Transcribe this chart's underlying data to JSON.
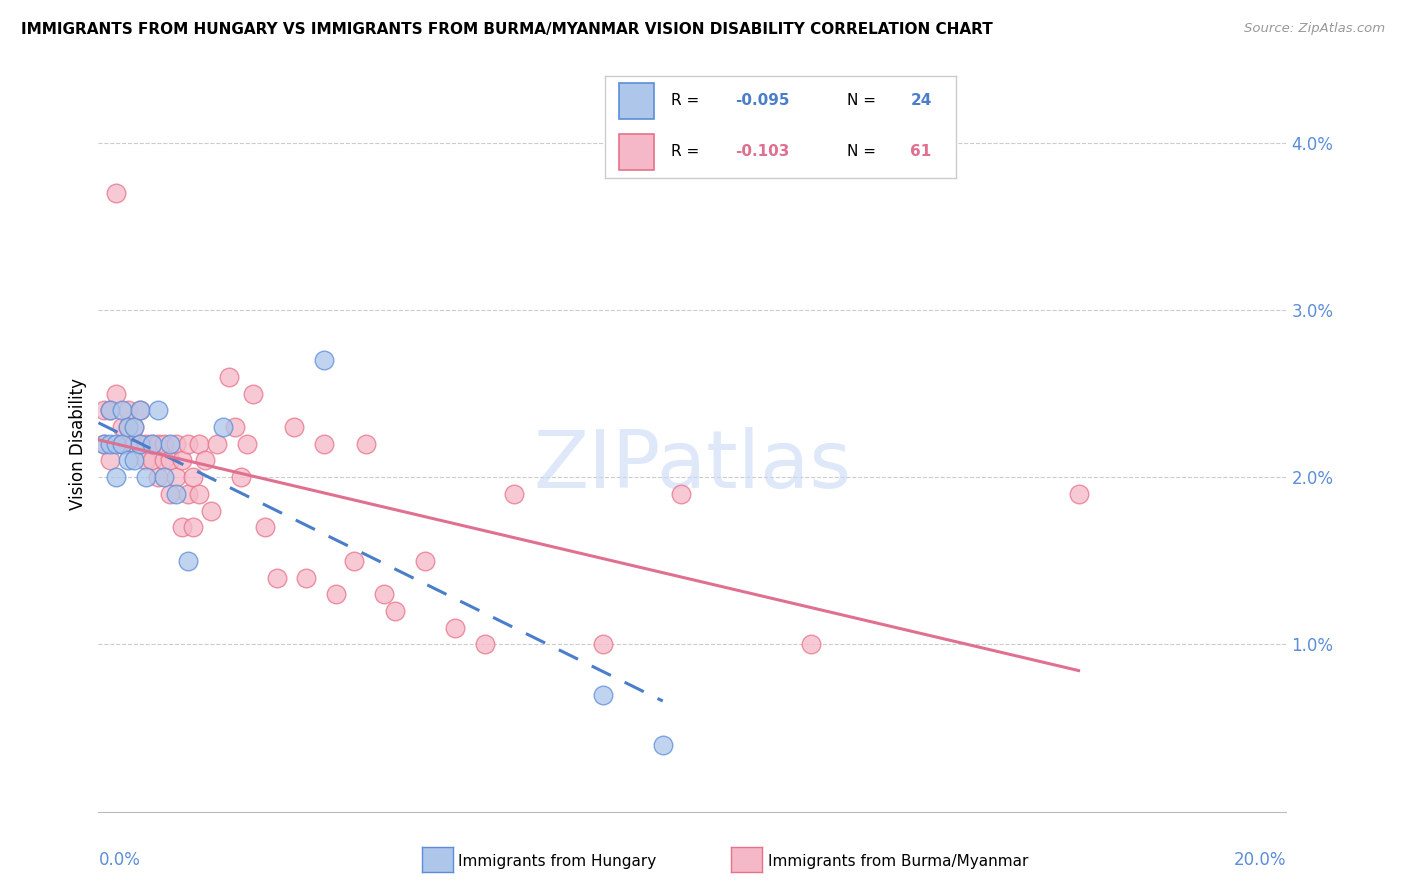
{
  "title": "IMMIGRANTS FROM HUNGARY VS IMMIGRANTS FROM BURMA/MYANMAR VISION DISABILITY CORRELATION CHART",
  "source": "Source: ZipAtlas.com",
  "ylabel": "Vision Disability",
  "xlim": [
    0.0,
    0.2
  ],
  "ylim": [
    0.0,
    0.044
  ],
  "yticks": [
    0.01,
    0.02,
    0.03,
    0.04
  ],
  "ytick_labels": [
    "1.0%",
    "2.0%",
    "3.0%",
    "4.0%"
  ],
  "legend_r_hungary": "-0.095",
  "legend_n_hungary": "24",
  "legend_r_burma": "-0.103",
  "legend_n_burma": "61",
  "color_hungary_fill": "#adc6ea",
  "color_hungary_edge": "#5b8dd9",
  "color_burma_fill": "#f5b8c8",
  "color_burma_edge": "#e8728a",
  "color_line_hungary": "#4a7ecb",
  "color_line_burma": "#e07090",
  "color_tick_label": "#5b8dd9",
  "watermark_text": "ZIPatlas",
  "watermark_color": "#c8daf5",
  "hungary_x": [
    0.001,
    0.002,
    0.002,
    0.003,
    0.003,
    0.004,
    0.004,
    0.005,
    0.005,
    0.006,
    0.006,
    0.007,
    0.007,
    0.008,
    0.009,
    0.01,
    0.011,
    0.012,
    0.013,
    0.015,
    0.021,
    0.038,
    0.085,
    0.095
  ],
  "hungary_y": [
    0.022,
    0.022,
    0.024,
    0.02,
    0.022,
    0.022,
    0.024,
    0.021,
    0.023,
    0.021,
    0.023,
    0.022,
    0.024,
    0.02,
    0.022,
    0.024,
    0.02,
    0.022,
    0.019,
    0.015,
    0.023,
    0.027,
    0.007,
    0.004
  ],
  "burma_x": [
    0.001,
    0.001,
    0.002,
    0.002,
    0.003,
    0.003,
    0.004,
    0.004,
    0.005,
    0.005,
    0.005,
    0.006,
    0.006,
    0.007,
    0.007,
    0.008,
    0.008,
    0.009,
    0.009,
    0.01,
    0.01,
    0.011,
    0.011,
    0.012,
    0.012,
    0.013,
    0.013,
    0.014,
    0.014,
    0.015,
    0.015,
    0.016,
    0.016,
    0.017,
    0.017,
    0.018,
    0.019,
    0.02,
    0.022,
    0.023,
    0.024,
    0.025,
    0.026,
    0.028,
    0.03,
    0.033,
    0.035,
    0.038,
    0.04,
    0.043,
    0.045,
    0.048,
    0.05,
    0.055,
    0.06,
    0.065,
    0.07,
    0.085,
    0.098,
    0.12,
    0.165
  ],
  "burma_y": [
    0.022,
    0.024,
    0.021,
    0.024,
    0.025,
    0.037,
    0.022,
    0.023,
    0.022,
    0.024,
    0.023,
    0.022,
    0.023,
    0.024,
    0.022,
    0.022,
    0.021,
    0.022,
    0.021,
    0.022,
    0.02,
    0.021,
    0.022,
    0.021,
    0.019,
    0.022,
    0.02,
    0.021,
    0.017,
    0.022,
    0.019,
    0.02,
    0.017,
    0.022,
    0.019,
    0.021,
    0.018,
    0.022,
    0.026,
    0.023,
    0.02,
    0.022,
    0.025,
    0.017,
    0.014,
    0.023,
    0.014,
    0.022,
    0.013,
    0.015,
    0.022,
    0.013,
    0.012,
    0.015,
    0.011,
    0.01,
    0.019,
    0.01,
    0.019,
    0.01,
    0.019
  ]
}
